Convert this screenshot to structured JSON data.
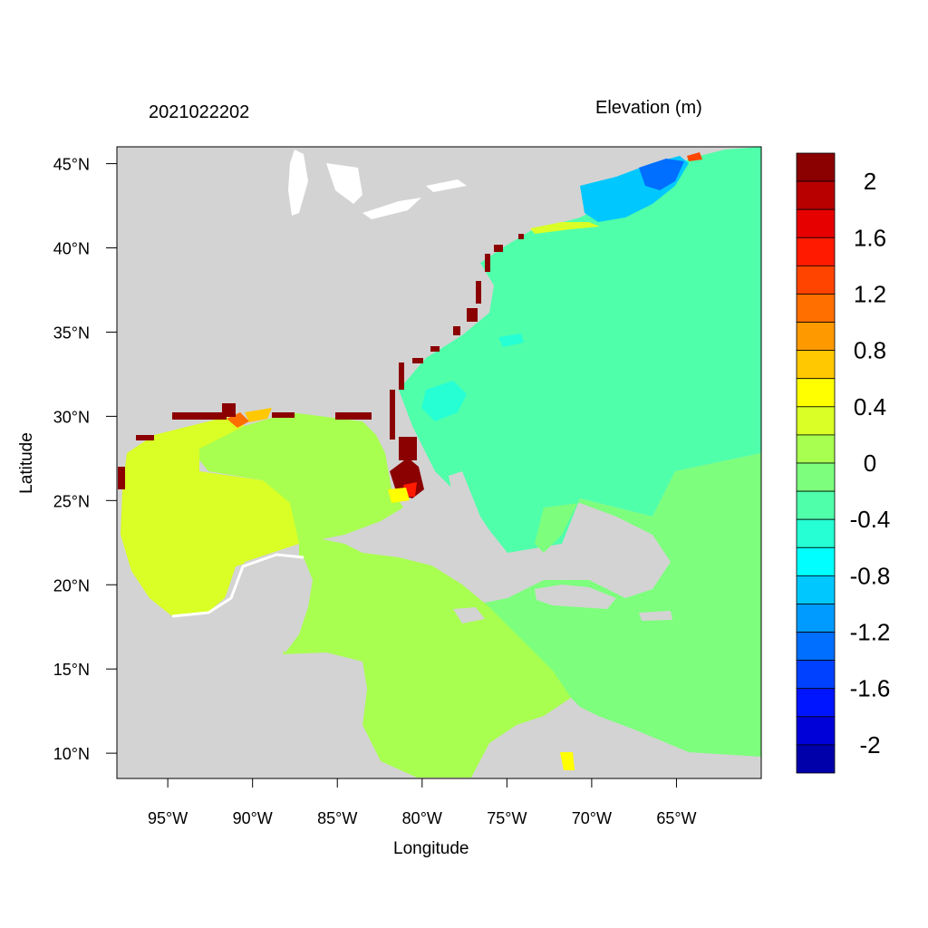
{
  "figure": {
    "left_title": "2021022202",
    "right_title": "Elevation (m)",
    "xlabel": "Longitude",
    "ylabel": "Latitude"
  },
  "map": {
    "type": "filled-contour-map",
    "lon_range": [
      -98,
      -60
    ],
    "lat_range": [
      8.5,
      46
    ],
    "x_ticks": [
      {
        "value": -95,
        "label": "95°W"
      },
      {
        "value": -90,
        "label": "90°W"
      },
      {
        "value": -85,
        "label": "85°W"
      },
      {
        "value": -80,
        "label": "80°W"
      },
      {
        "value": -75,
        "label": "75°W"
      },
      {
        "value": -70,
        "label": "70°W"
      },
      {
        "value": -65,
        "label": "65°W"
      }
    ],
    "y_ticks": [
      {
        "value": 45,
        "label": "45°N"
      },
      {
        "value": 40,
        "label": "40°N"
      },
      {
        "value": 35,
        "label": "35°N"
      },
      {
        "value": 30,
        "label": "30°N"
      },
      {
        "value": 25,
        "label": "25°N"
      },
      {
        "value": 20,
        "label": "20°N"
      },
      {
        "value": 15,
        "label": "15°N"
      },
      {
        "value": 10,
        "label": "10°N"
      }
    ],
    "land_color": "#d3d3d3"
  },
  "colorbar": {
    "colors_top_to_bottom": [
      "#8b0000",
      "#b80000",
      "#e60000",
      "#ff1a00",
      "#ff4400",
      "#ff6f00",
      "#ff9900",
      "#ffc800",
      "#ffff00",
      "#d9ff26",
      "#a8ff4f",
      "#7dff7d",
      "#50ffaa",
      "#26ffd4",
      "#00ffff",
      "#00c8ff",
      "#009bff",
      "#006eff",
      "#0041ff",
      "#0015ff",
      "#0000d9",
      "#0000aa"
    ],
    "labels": [
      {
        "level": 10,
        "text": "2"
      },
      {
        "level": 9,
        "text": "1.6"
      },
      {
        "level": 8,
        "text": "1.2"
      },
      {
        "level": 7,
        "text": "0.8"
      },
      {
        "level": 6,
        "text": "0.4"
      },
      {
        "level": 5,
        "text": "0"
      },
      {
        "level": 4,
        "text": "-0.4"
      },
      {
        "level": 3,
        "text": "-0.8"
      },
      {
        "level": 2,
        "text": "-1.2"
      },
      {
        "level": 1,
        "text": "-1.6"
      },
      {
        "level": 0,
        "text": "-2"
      }
    ]
  }
}
